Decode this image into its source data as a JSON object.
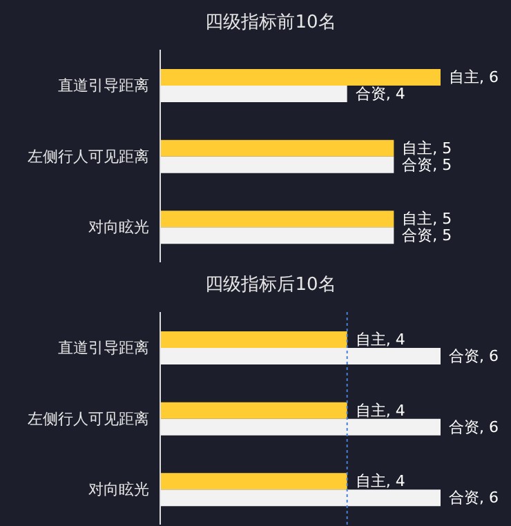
{
  "chart_data": [
    {
      "type": "bar",
      "orientation": "horizontal",
      "title": "四级指标前10名",
      "categories": [
        "直道引导距离",
        "左侧行人可见距离",
        "对向眩光"
      ],
      "xlim": [
        0,
        6
      ],
      "series": [
        {
          "color": "#ffcc33",
          "values": [
            6,
            5,
            5
          ],
          "value_labels": [
            "自主, 6",
            "自主, 5",
            "自主, 5"
          ]
        },
        {
          "color": "#f2f2f2",
          "values": [
            4,
            5,
            5
          ],
          "value_labels": [
            "合资, 4",
            "合资, 5",
            "合资, 5"
          ]
        }
      ]
    },
    {
      "type": "bar",
      "orientation": "horizontal",
      "title": "四级指标后10名",
      "categories": [
        "直道引导距离",
        "左侧行人可见距离",
        "对向眩光"
      ],
      "xlim": [
        0,
        6
      ],
      "ref_lines": [
        {
          "axis": "x",
          "value": 4,
          "color": "#4a7fd6",
          "line_style": "dotted"
        }
      ],
      "series": [
        {
          "color": "#ffcc33",
          "values": [
            4,
            4,
            4
          ],
          "value_labels": [
            "自主, 4",
            "自主, 4",
            "自主, 4"
          ]
        },
        {
          "color": "#f2f2f2",
          "values": [
            6,
            6,
            6
          ],
          "value_labels": [
            "合资, 6",
            "合资, 6",
            "合资, 6"
          ]
        }
      ]
    }
  ]
}
